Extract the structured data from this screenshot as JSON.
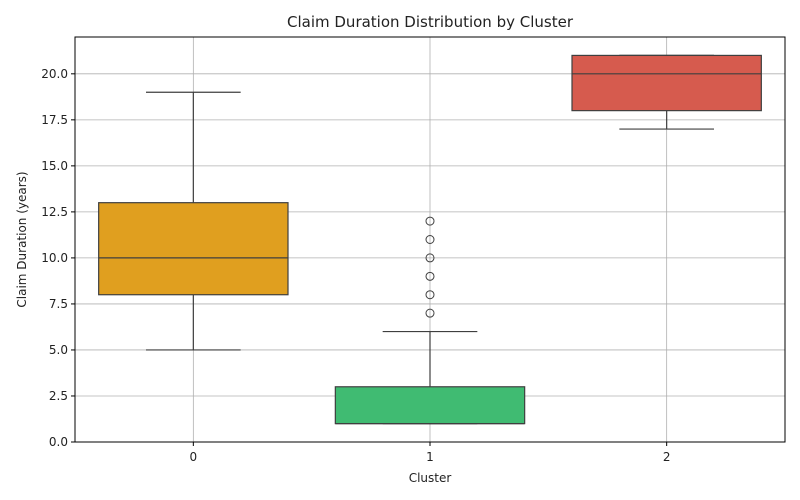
{
  "chart_data": {
    "type": "box",
    "title": "Claim Duration Distribution by Cluster",
    "xlabel": "Cluster",
    "ylabel": "Claim Duration (years)",
    "categories": [
      "0",
      "1",
      "2"
    ],
    "ylim": [
      0,
      22
    ],
    "yticks": [
      0.0,
      2.5,
      5.0,
      7.5,
      10.0,
      12.5,
      15.0,
      17.5,
      20.0
    ],
    "ytick_labels": [
      "0.0",
      "2.5",
      "5.0",
      "7.5",
      "10.0",
      "12.5",
      "15.0",
      "17.5",
      "20.0"
    ],
    "grid": true,
    "legend": "none",
    "boxes": [
      {
        "category": "0",
        "color": "#e09f1f",
        "whisker_low": 5,
        "q1": 8,
        "median": 10,
        "q3": 13,
        "whisker_high": 19,
        "outliers": []
      },
      {
        "category": "1",
        "color": "#40bb72",
        "whisker_low": 1,
        "q1": 1,
        "median": 1,
        "q3": 3,
        "whisker_high": 6,
        "outliers": [
          7,
          8,
          9,
          10,
          11,
          12
        ]
      },
      {
        "category": "2",
        "color": "#d65b4e",
        "whisker_low": 17,
        "q1": 18,
        "median": 20,
        "q3": 21,
        "whisker_high": 21,
        "outliers": []
      }
    ]
  }
}
